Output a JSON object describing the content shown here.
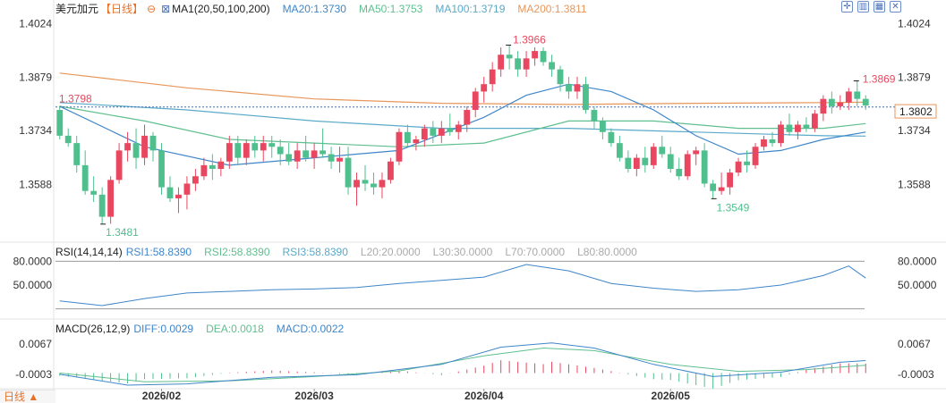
{
  "header": {
    "instrument": "美元加元",
    "period": "【日线】",
    "zoom_icon": "zoom-out-icon",
    "ma_label": "MA1(20,50,100,200)",
    "ma20": "MA20:1.3730",
    "ma50": "MA50:1.3753",
    "ma100": "MA100:1.3719",
    "ma200": "MA200:1.3811"
  },
  "toolbar": {
    "icons": [
      "zoom-in-icon",
      "layout-icon",
      "grid-icon",
      "close-icon"
    ]
  },
  "footer": {
    "period_label": "日线 ▲"
  },
  "colors": {
    "up": "#e8475f",
    "down": "#4fbf8e",
    "ma20": "#3f86c9",
    "ma50": "#5fbf8f",
    "ma100": "#5aa9c9",
    "ma200": "#e8965a",
    "rsi": "#3f86c9",
    "macd_diff": "#3f86c9",
    "macd_dea": "#5fbf8f",
    "last_price_bg": "#ffffff"
  },
  "chart_data": [
    {
      "type": "candlestick",
      "ylim": [
        1.3448,
        1.404
      ],
      "y_ticks": [
        "1.4024",
        "1.3879",
        "1.3734",
        "1.3588"
      ],
      "x_ticks": [
        "2026/02",
        "2026/03",
        "2026/04",
        "2026/05"
      ],
      "annotations": {
        "high": "1.3966",
        "low": "1.3481",
        "recent_high": "1.3869",
        "recent_low": "1.3549",
        "ref_price": "1.3798",
        "last_price": "1.3802"
      },
      "ohlc": [
        [
          1.379,
          1.38,
          1.371,
          1.372
        ],
        [
          1.372,
          1.374,
          1.369,
          1.37
        ],
        [
          1.37,
          1.372,
          1.362,
          1.364
        ],
        [
          1.364,
          1.368,
          1.356,
          1.357
        ],
        [
          1.357,
          1.361,
          1.354,
          1.356
        ],
        [
          1.356,
          1.358,
          1.348,
          1.35
        ],
        [
          1.35,
          1.361,
          1.3481,
          1.36
        ],
        [
          1.36,
          1.37,
          1.359,
          1.368
        ],
        [
          1.368,
          1.373,
          1.365,
          1.37
        ],
        [
          1.37,
          1.374,
          1.363,
          1.366
        ],
        [
          1.366,
          1.375,
          1.364,
          1.372
        ],
        [
          1.372,
          1.373,
          1.365,
          1.368
        ],
        [
          1.368,
          1.37,
          1.356,
          1.358
        ],
        [
          1.358,
          1.361,
          1.354,
          1.355
        ],
        [
          1.355,
          1.358,
          1.351,
          1.356
        ],
        [
          1.356,
          1.361,
          1.352,
          1.359
        ],
        [
          1.359,
          1.363,
          1.357,
          1.361
        ],
        [
          1.361,
          1.366,
          1.36,
          1.364
        ],
        [
          1.364,
          1.367,
          1.36,
          1.363
        ],
        [
          1.363,
          1.366,
          1.361,
          1.365
        ],
        [
          1.365,
          1.372,
          1.363,
          1.37
        ],
        [
          1.37,
          1.372,
          1.364,
          1.366
        ],
        [
          1.366,
          1.371,
          1.364,
          1.37
        ],
        [
          1.37,
          1.372,
          1.366,
          1.368
        ],
        [
          1.368,
          1.372,
          1.365,
          1.37
        ],
        [
          1.37,
          1.372,
          1.366,
          1.369
        ],
        [
          1.369,
          1.371,
          1.364,
          1.367
        ],
        [
          1.367,
          1.37,
          1.364,
          1.365
        ],
        [
          1.365,
          1.37,
          1.363,
          1.368
        ],
        [
          1.368,
          1.372,
          1.365,
          1.366
        ],
        [
          1.366,
          1.37,
          1.363,
          1.368
        ],
        [
          1.368,
          1.374,
          1.366,
          1.367
        ],
        [
          1.367,
          1.369,
          1.363,
          1.365
        ],
        [
          1.365,
          1.369,
          1.362,
          1.366
        ],
        [
          1.366,
          1.369,
          1.356,
          1.358
        ],
        [
          1.358,
          1.362,
          1.353,
          1.36
        ],
        [
          1.36,
          1.364,
          1.357,
          1.359
        ],
        [
          1.359,
          1.362,
          1.356,
          1.358
        ],
        [
          1.358,
          1.362,
          1.355,
          1.36
        ],
        [
          1.36,
          1.366,
          1.359,
          1.365
        ],
        [
          1.365,
          1.374,
          1.364,
          1.373
        ],
        [
          1.373,
          1.375,
          1.369,
          1.37
        ],
        [
          1.37,
          1.372,
          1.368,
          1.371
        ],
        [
          1.371,
          1.375,
          1.369,
          1.374
        ],
        [
          1.374,
          1.376,
          1.37,
          1.372
        ],
        [
          1.372,
          1.376,
          1.37,
          1.374
        ],
        [
          1.374,
          1.378,
          1.372,
          1.373
        ],
        [
          1.373,
          1.376,
          1.371,
          1.375
        ],
        [
          1.375,
          1.38,
          1.373,
          1.379
        ],
        [
          1.379,
          1.385,
          1.377,
          1.384
        ],
        [
          1.384,
          1.388,
          1.381,
          1.386
        ],
        [
          1.386,
          1.392,
          1.384,
          1.39
        ],
        [
          1.39,
          1.396,
          1.388,
          1.394
        ],
        [
          1.394,
          1.3966,
          1.39,
          1.393
        ],
        [
          1.393,
          1.395,
          1.388,
          1.39
        ],
        [
          1.39,
          1.395,
          1.388,
          1.393
        ],
        [
          1.393,
          1.396,
          1.391,
          1.395
        ],
        [
          1.395,
          1.396,
          1.391,
          1.392
        ],
        [
          1.392,
          1.394,
          1.388,
          1.39
        ],
        [
          1.39,
          1.391,
          1.384,
          1.386
        ],
        [
          1.386,
          1.388,
          1.382,
          1.384
        ],
        [
          1.384,
          1.388,
          1.382,
          1.386
        ],
        [
          1.386,
          1.388,
          1.378,
          1.379
        ],
        [
          1.379,
          1.38,
          1.374,
          1.376
        ],
        [
          1.376,
          1.377,
          1.371,
          1.373
        ],
        [
          1.373,
          1.374,
          1.369,
          1.37
        ],
        [
          1.37,
          1.372,
          1.365,
          1.366
        ],
        [
          1.366,
          1.368,
          1.362,
          1.363
        ],
        [
          1.363,
          1.367,
          1.361,
          1.366
        ],
        [
          1.366,
          1.369,
          1.362,
          1.364
        ],
        [
          1.364,
          1.37,
          1.363,
          1.369
        ],
        [
          1.369,
          1.372,
          1.366,
          1.367
        ],
        [
          1.367,
          1.369,
          1.362,
          1.363
        ],
        [
          1.363,
          1.366,
          1.36,
          1.361
        ],
        [
          1.361,
          1.368,
          1.36,
          1.367
        ],
        [
          1.367,
          1.369,
          1.364,
          1.368
        ],
        [
          1.368,
          1.37,
          1.358,
          1.359
        ],
        [
          1.359,
          1.36,
          1.3549,
          1.357
        ],
        [
          1.357,
          1.362,
          1.356,
          1.358
        ],
        [
          1.358,
          1.363,
          1.356,
          1.362
        ],
        [
          1.362,
          1.366,
          1.361,
          1.365
        ],
        [
          1.365,
          1.368,
          1.362,
          1.364
        ],
        [
          1.364,
          1.37,
          1.363,
          1.369
        ],
        [
          1.369,
          1.372,
          1.368,
          1.371
        ],
        [
          1.371,
          1.373,
          1.369,
          1.37
        ],
        [
          1.37,
          1.376,
          1.369,
          1.375
        ],
        [
          1.375,
          1.378,
          1.372,
          1.373
        ],
        [
          1.373,
          1.376,
          1.371,
          1.375
        ],
        [
          1.375,
          1.377,
          1.373,
          1.374
        ],
        [
          1.374,
          1.379,
          1.373,
          1.378
        ],
        [
          1.378,
          1.383,
          1.376,
          1.382
        ],
        [
          1.382,
          1.384,
          1.378,
          1.38
        ],
        [
          1.38,
          1.383,
          1.379,
          1.381
        ],
        [
          1.381,
          1.385,
          1.379,
          1.384
        ],
        [
          1.384,
          1.3869,
          1.38,
          1.382
        ],
        [
          1.382,
          1.383,
          1.379,
          1.3802
        ]
      ],
      "ma": {
        "ma20": [
          [
            0,
            1.38
          ],
          [
            10,
            1.369
          ],
          [
            20,
            1.364
          ],
          [
            30,
            1.366
          ],
          [
            40,
            1.368
          ],
          [
            50,
            1.377
          ],
          [
            55,
            1.383
          ],
          [
            60,
            1.386
          ],
          [
            65,
            1.384
          ],
          [
            70,
            1.379
          ],
          [
            75,
            1.372
          ],
          [
            80,
            1.367
          ],
          [
            85,
            1.368
          ],
          [
            90,
            1.371
          ],
          [
            95,
            1.373
          ]
        ],
        "ma50": [
          [
            0,
            1.38
          ],
          [
            10,
            1.376
          ],
          [
            20,
            1.371
          ],
          [
            30,
            1.37
          ],
          [
            40,
            1.369
          ],
          [
            50,
            1.37
          ],
          [
            60,
            1.376
          ],
          [
            70,
            1.376
          ],
          [
            80,
            1.374
          ],
          [
            90,
            1.374
          ],
          [
            95,
            1.3753
          ]
        ],
        "ma100": [
          [
            0,
            1.381
          ],
          [
            15,
            1.379
          ],
          [
            30,
            1.376
          ],
          [
            45,
            1.374
          ],
          [
            60,
            1.374
          ],
          [
            75,
            1.373
          ],
          [
            90,
            1.372
          ],
          [
            95,
            1.3719
          ]
        ],
        "ma200": [
          [
            0,
            1.389
          ],
          [
            15,
            1.385
          ],
          [
            30,
            1.382
          ],
          [
            45,
            1.3808
          ],
          [
            60,
            1.3805
          ],
          [
            75,
            1.3808
          ],
          [
            90,
            1.381
          ],
          [
            95,
            1.3811
          ]
        ]
      }
    },
    {
      "type": "line",
      "title": "RSI(14,14,14)",
      "series_labels": [
        "RSI1:58.8390",
        "RSI2:58.8390",
        "RSI3:58.8390",
        "L20:20.0000",
        "L30:30.0000",
        "L70:70.0000",
        "L80:80.0000"
      ],
      "y_ticks": [
        "80.0000",
        "50.0000"
      ],
      "ylim": [
        15,
        85
      ],
      "levels": [
        20,
        80
      ],
      "rsi": [
        [
          0,
          30
        ],
        [
          5,
          24
        ],
        [
          10,
          33
        ],
        [
          15,
          40
        ],
        [
          20,
          42
        ],
        [
          25,
          44
        ],
        [
          30,
          45
        ],
        [
          35,
          47
        ],
        [
          40,
          52
        ],
        [
          45,
          56
        ],
        [
          50,
          60
        ],
        [
          55,
          76
        ],
        [
          60,
          68
        ],
        [
          65,
          52
        ],
        [
          70,
          46
        ],
        [
          75,
          42
        ],
        [
          80,
          44
        ],
        [
          85,
          50
        ],
        [
          90,
          62
        ],
        [
          93,
          74
        ],
        [
          95,
          58.8
        ]
      ]
    },
    {
      "type": "bar",
      "title": "MACD(26,12,9)",
      "series_labels": [
        "DIFF:0.0029",
        "DEA:0.0018",
        "MACD:0.0022"
      ],
      "y_ticks": [
        "0.0067",
        "-0.0003"
      ],
      "ylim": [
        -0.003,
        0.009
      ],
      "diff": [
        [
          0,
          -0.0003
        ],
        [
          8,
          -0.0028
        ],
        [
          15,
          -0.0025
        ],
        [
          25,
          -0.001
        ],
        [
          35,
          -0.0004
        ],
        [
          45,
          0.002
        ],
        [
          52,
          0.006
        ],
        [
          58,
          0.007
        ],
        [
          63,
          0.0058
        ],
        [
          70,
          0.002
        ],
        [
          77,
          -0.0008
        ],
        [
          85,
          0.0002
        ],
        [
          92,
          0.0025
        ],
        [
          95,
          0.0029
        ]
      ],
      "dea": [
        [
          0,
          0.0
        ],
        [
          10,
          -0.002
        ],
        [
          20,
          -0.0018
        ],
        [
          30,
          -0.0008
        ],
        [
          40,
          0.0005
        ],
        [
          50,
          0.004
        ],
        [
          57,
          0.0058
        ],
        [
          63,
          0.0052
        ],
        [
          72,
          0.002
        ],
        [
          80,
          0.0004
        ],
        [
          88,
          0.0008
        ],
        [
          95,
          0.0018
        ]
      ]
    }
  ]
}
